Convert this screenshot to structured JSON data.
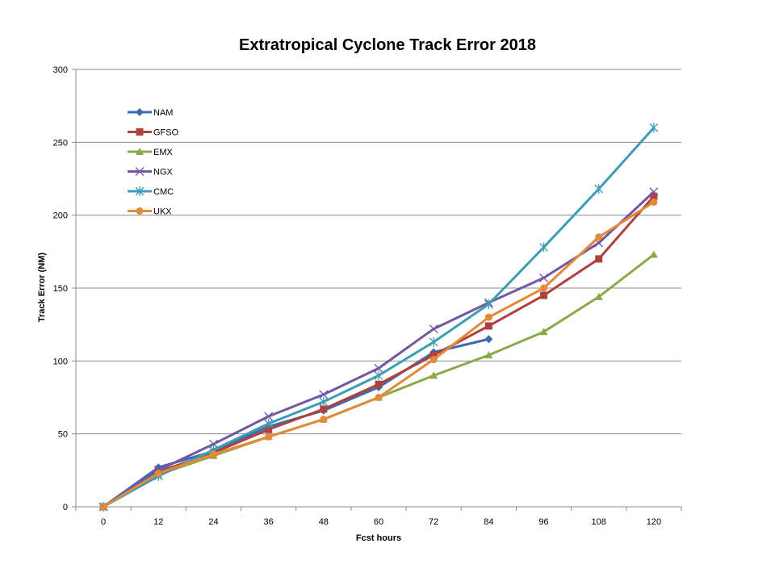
{
  "chart_data": {
    "type": "line",
    "title": "Extratropical Cyclone Track Error  2018",
    "xlabel": "Fcst hours",
    "ylabel": "Track Error  (NM)",
    "categories": [
      "0",
      "12",
      "24",
      "36",
      "48",
      "60",
      "72",
      "84",
      "96",
      "108",
      "120"
    ],
    "ylim": [
      0,
      300
    ],
    "yticks": [
      0,
      50,
      100,
      150,
      200,
      250,
      300
    ],
    "grid": true,
    "legend_position": "top-left",
    "series": [
      {
        "name": "NAM",
        "color": "#3d6bb0",
        "marker": "diamond",
        "values": [
          0,
          27,
          38,
          55,
          66,
          82,
          106,
          115,
          null,
          null,
          null
        ]
      },
      {
        "name": "GFSO",
        "color": "#b0403e",
        "marker": "square",
        "values": [
          0,
          24,
          37,
          53,
          67,
          84,
          104,
          124,
          145,
          170,
          213
        ]
      },
      {
        "name": "EMX",
        "color": "#8aaa48",
        "marker": "triangle",
        "values": [
          0,
          22,
          35,
          48,
          60,
          75,
          90,
          104,
          120,
          144,
          173
        ]
      },
      {
        "name": "NGX",
        "color": "#7556a2",
        "marker": "x",
        "values": [
          0,
          25,
          43,
          62,
          77,
          95,
          122,
          140,
          157,
          181,
          216
        ]
      },
      {
        "name": "CMC",
        "color": "#3d9cb6",
        "marker": "star",
        "values": [
          0,
          21,
          39,
          57,
          72,
          90,
          113,
          139,
          178,
          218,
          260
        ]
      },
      {
        "name": "UKX",
        "color": "#e08a3a",
        "marker": "circle",
        "values": [
          0,
          23,
          36,
          48,
          60,
          75,
          101,
          130,
          150,
          185,
          209
        ]
      }
    ]
  }
}
